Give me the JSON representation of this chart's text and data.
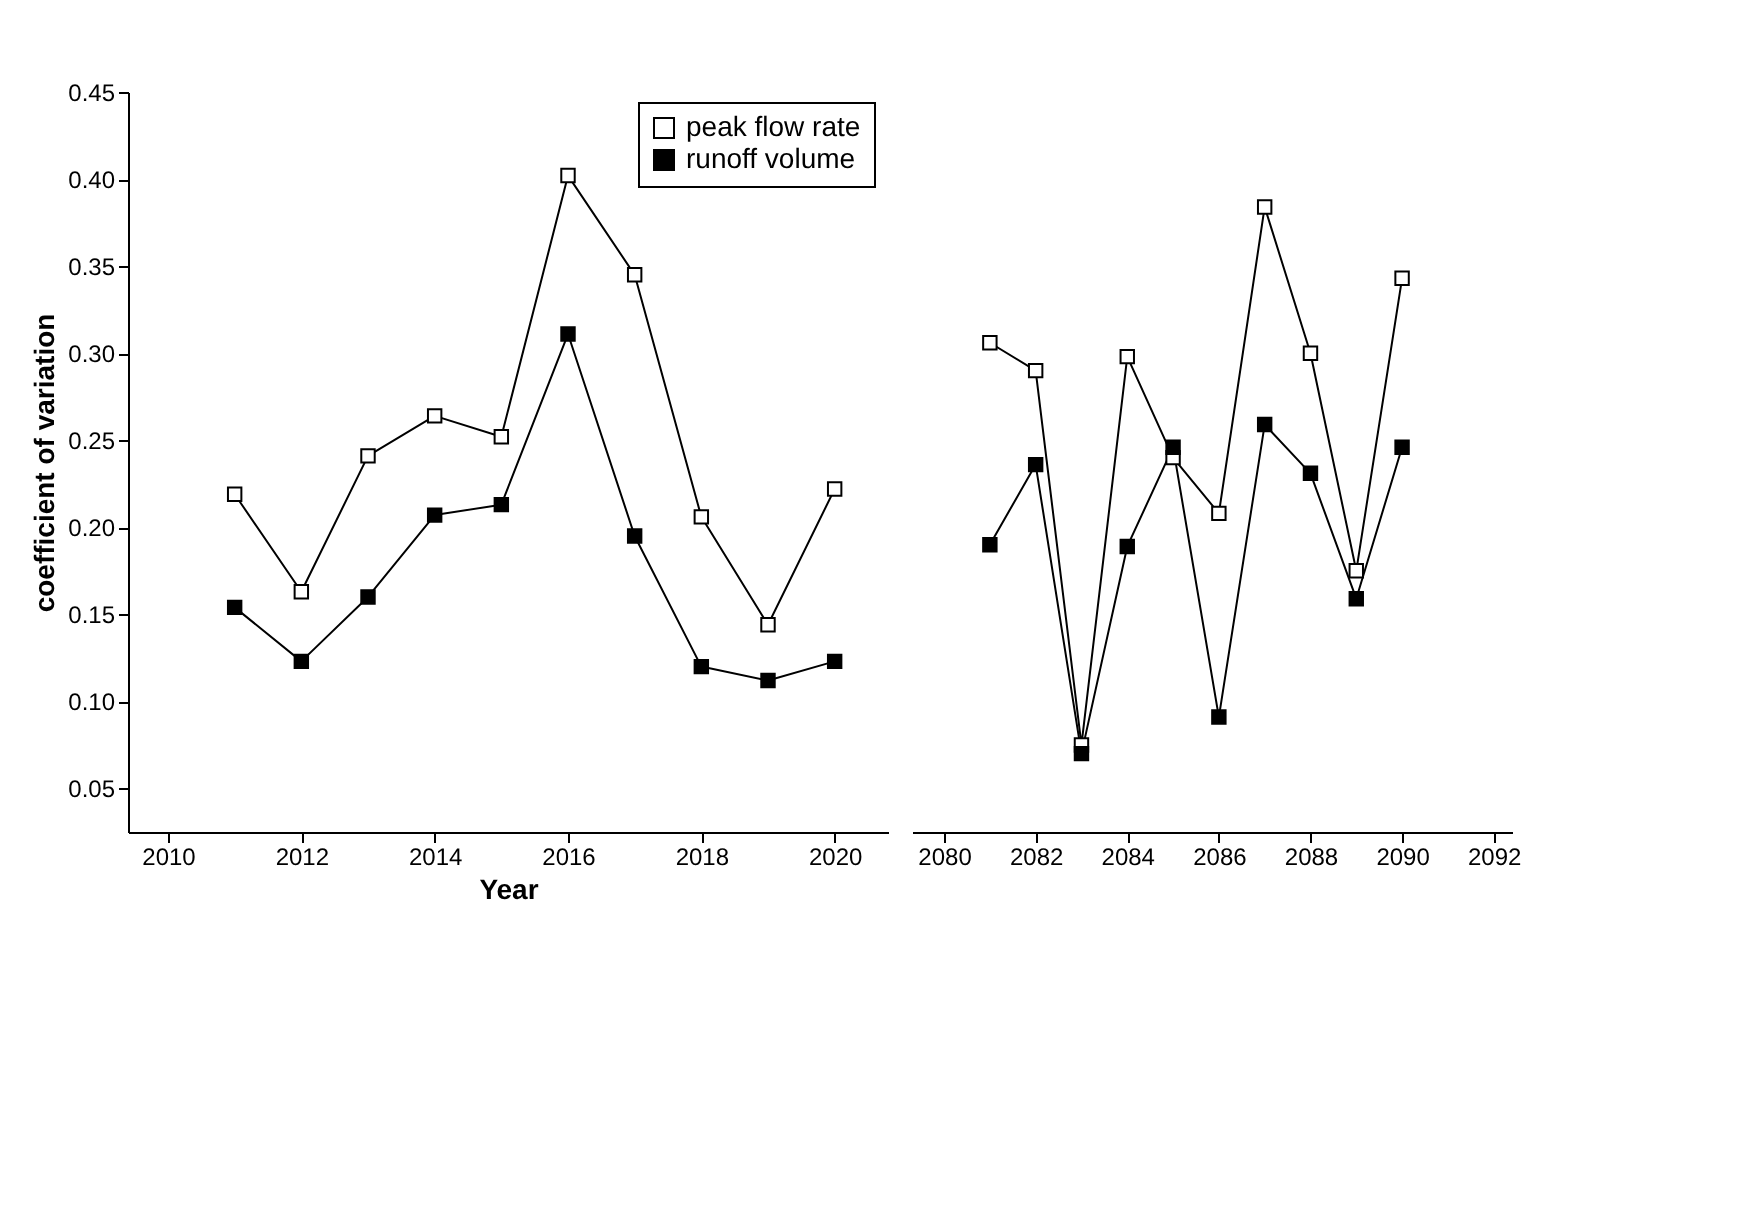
{
  "chart_data": [
    {
      "type": "line",
      "xlabel": "Year",
      "ylabel": "coefficient of variation",
      "legend": "top right",
      "marker": "square",
      "line_style": "solid",
      "grid": false,
      "x": [
        2011,
        2012,
        2013,
        2014,
        2015,
        2016,
        2017,
        2018,
        2019,
        2020
      ],
      "series": [
        {
          "name": "peak flow rate",
          "color": "#000000",
          "values": [
            0.219,
            0.163,
            0.241,
            0.264,
            0.252,
            0.402,
            0.345,
            0.206,
            0.144,
            0.222
          ]
        },
        {
          "name": "runoff volume",
          "color": "#000000",
          "values": [
            0.154,
            0.123,
            0.16,
            0.207,
            0.213,
            0.311,
            0.195,
            0.12,
            0.112,
            0.123
          ]
        }
      ],
      "xlim": [
        2009.4,
        2020.8
      ],
      "xticks": [
        2010,
        2012,
        2014,
        2016,
        2018,
        2020
      ],
      "ylim": [
        0.025,
        0.45
      ],
      "yticks": [
        {
          "value": 0.05,
          "label": "0.05"
        },
        {
          "value": 0.1,
          "label": "0.10"
        },
        {
          "value": 0.15,
          "label": "0.15"
        },
        {
          "value": 0.2,
          "label": "0.20"
        },
        {
          "value": 0.25,
          "label": "0.25"
        },
        {
          "value": 0.3,
          "label": "0.30"
        },
        {
          "value": 0.35,
          "label": "0.35"
        },
        {
          "value": 0.4,
          "label": "0.40"
        },
        {
          "value": 0.45,
          "label": "0.45"
        }
      ]
    },
    {
      "type": "line",
      "marker": "square",
      "line_style": "solid",
      "grid": false,
      "tick_labels": "x",
      "x": [
        2081,
        2082,
        2083,
        2084,
        2085,
        2086,
        2087,
        2088,
        2089,
        2090
      ],
      "series": [
        {
          "color": "#000000",
          "values": [
            0.306,
            0.29,
            0.075,
            0.298,
            0.24,
            0.208,
            0.384,
            0.3,
            0.175,
            0.343
          ]
        },
        {
          "color": "#000000",
          "values": [
            0.19,
            0.236,
            0.07,
            0.189,
            0.246,
            0.091,
            0.259,
            0.231,
            0.159,
            0.246
          ]
        }
      ],
      "xlim": [
        2079.3,
        2092.4
      ],
      "xticks": [
        2080,
        2082,
        2084,
        2086,
        2088,
        2090,
        2092
      ],
      "ylim": [
        0.025,
        0.45
      ]
    }
  ]
}
